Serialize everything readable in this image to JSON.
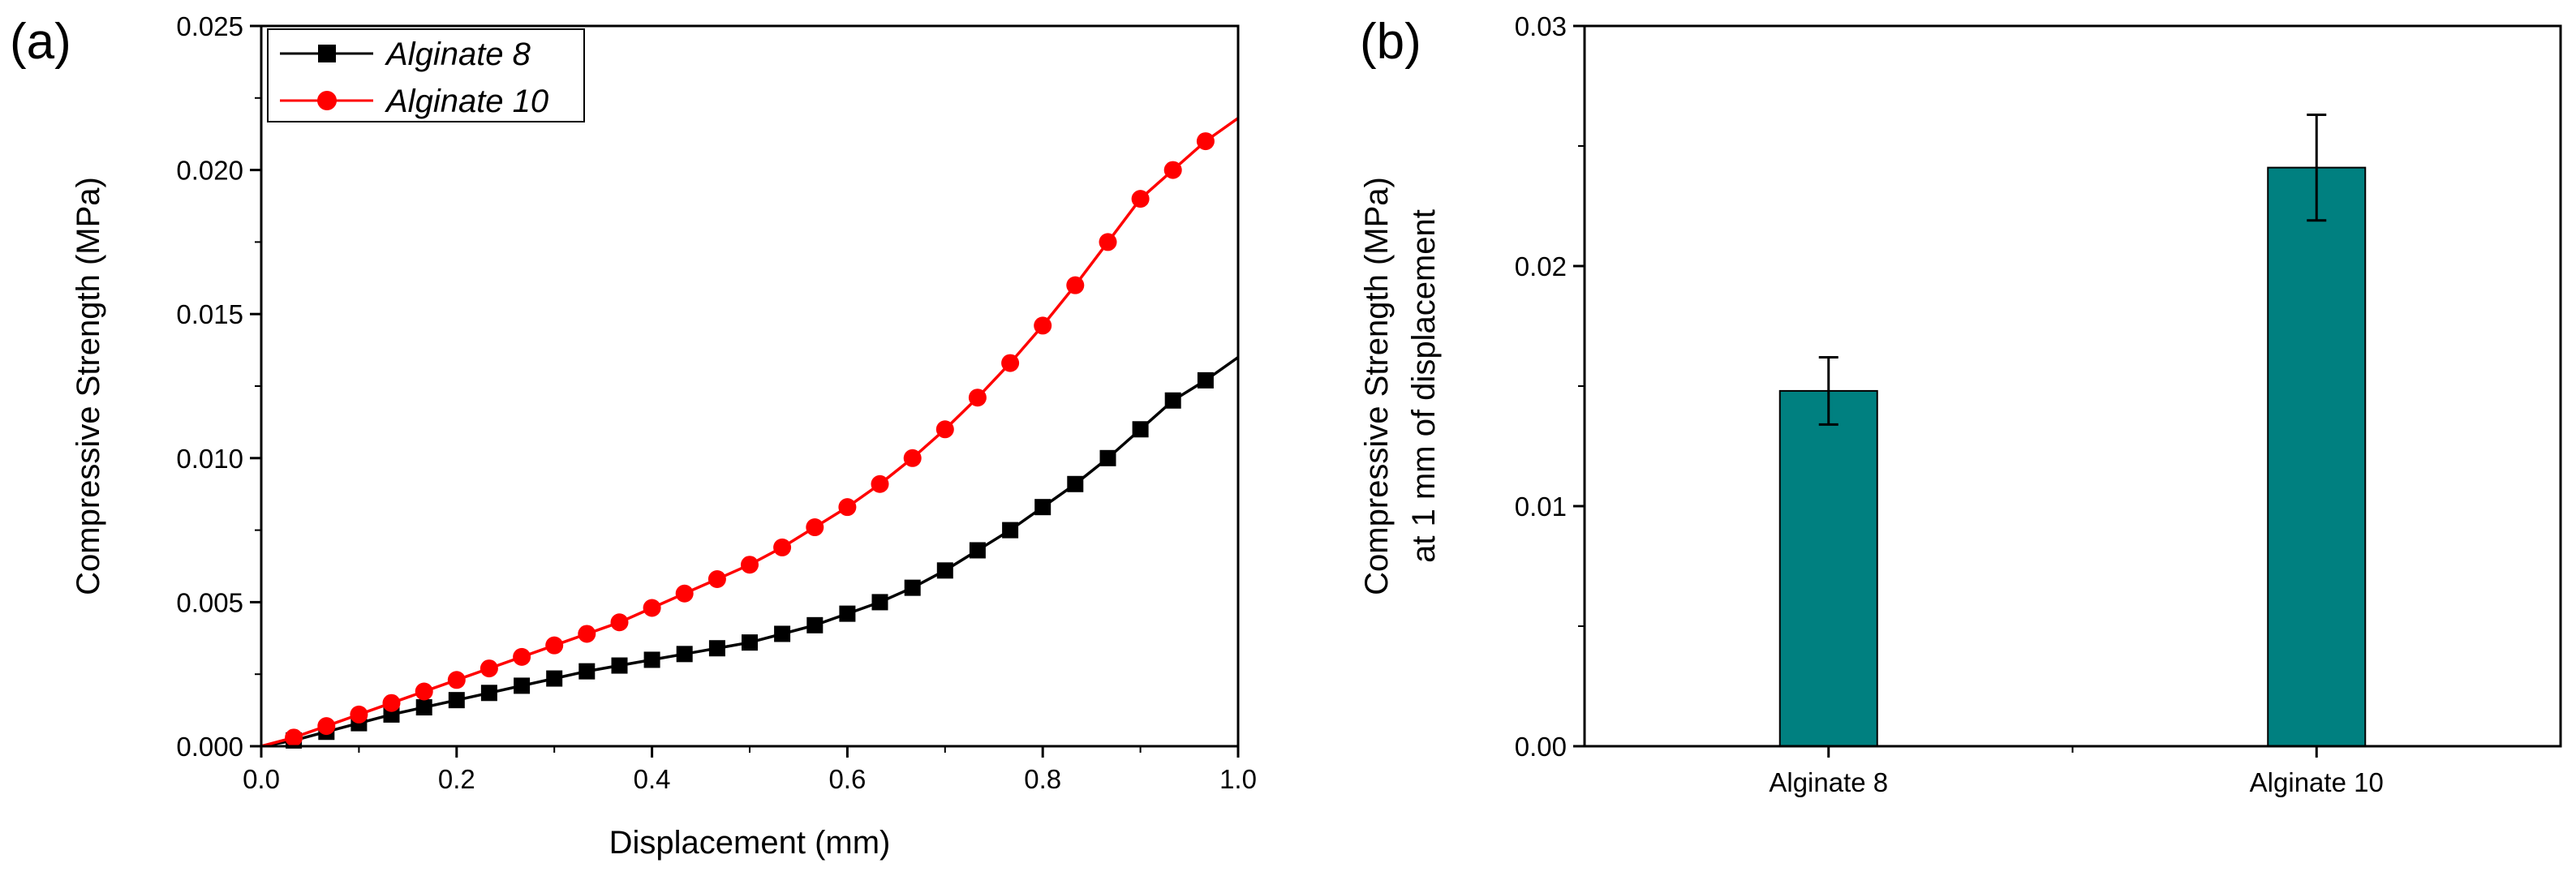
{
  "colors": {
    "alginate8": "#000000",
    "alginate10": "#ff0000",
    "bar_fill": "#008080"
  },
  "chart_data": [
    {
      "panel_label": "(a)",
      "type": "line",
      "title": "",
      "xlabel": "Displacement (mm)",
      "ylabel": "Compressive Strength (MPa)",
      "xlim": [
        0,
        1.0
      ],
      "ylim": [
        0,
        0.025
      ],
      "xticks": [
        "0.0",
        "0.2",
        "0.4",
        "0.6",
        "0.8",
        "1.0"
      ],
      "yticks": [
        "0.000",
        "0.005",
        "0.010",
        "0.015",
        "0.020",
        "0.025"
      ],
      "legend_position": "top-left",
      "series": [
        {
          "name": "Alginate 8",
          "marker": "square",
          "x": [
            0.0,
            0.0333,
            0.0667,
            0.1,
            0.1333,
            0.1667,
            0.2,
            0.2333,
            0.2667,
            0.3,
            0.3333,
            0.3667,
            0.4,
            0.4333,
            0.4667,
            0.5,
            0.5333,
            0.5667,
            0.6,
            0.6333,
            0.6667,
            0.7,
            0.7333,
            0.7667,
            0.8,
            0.8333,
            0.8667,
            0.9,
            0.9333,
            0.9667,
            1.0
          ],
          "y": [
            0.0,
            0.0002,
            0.0005,
            0.0008,
            0.0011,
            0.00135,
            0.0016,
            0.00185,
            0.0021,
            0.00235,
            0.0026,
            0.0028,
            0.003,
            0.0032,
            0.0034,
            0.0036,
            0.0039,
            0.0042,
            0.0046,
            0.005,
            0.0055,
            0.0061,
            0.0068,
            0.0075,
            0.0083,
            0.0091,
            0.01,
            0.011,
            0.012,
            0.0127,
            0.0135
          ]
        },
        {
          "name": "Alginate 10",
          "marker": "circle",
          "x": [
            0.0,
            0.0333,
            0.0667,
            0.1,
            0.1333,
            0.1667,
            0.2,
            0.2333,
            0.2667,
            0.3,
            0.3333,
            0.3667,
            0.4,
            0.4333,
            0.4667,
            0.5,
            0.5333,
            0.5667,
            0.6,
            0.6333,
            0.6667,
            0.7,
            0.7333,
            0.7667,
            0.8,
            0.8333,
            0.8667,
            0.9,
            0.9333,
            0.9667,
            1.0
          ],
          "y": [
            0.0,
            0.0003,
            0.0007,
            0.0011,
            0.0015,
            0.0019,
            0.0023,
            0.0027,
            0.0031,
            0.0035,
            0.0039,
            0.0043,
            0.0048,
            0.0053,
            0.0058,
            0.0063,
            0.0069,
            0.0076,
            0.0083,
            0.0091,
            0.01,
            0.011,
            0.0121,
            0.0133,
            0.0146,
            0.016,
            0.0175,
            0.019,
            0.02,
            0.021,
            0.0218
          ]
        }
      ]
    },
    {
      "panel_label": "(b)",
      "type": "bar",
      "title": "",
      "xlabel": "",
      "ylabel_line1": "Compressive Strength (MPa)",
      "ylabel_line2": "at 1 mm of displacement",
      "ylim": [
        0,
        0.03
      ],
      "yticks": [
        "0.00",
        "0.01",
        "0.02",
        "0.03"
      ],
      "categories": [
        "Alginate 8",
        "Alginate 10"
      ],
      "values": [
        0.0148,
        0.0241
      ],
      "errors": [
        0.0014,
        0.0022
      ]
    }
  ]
}
